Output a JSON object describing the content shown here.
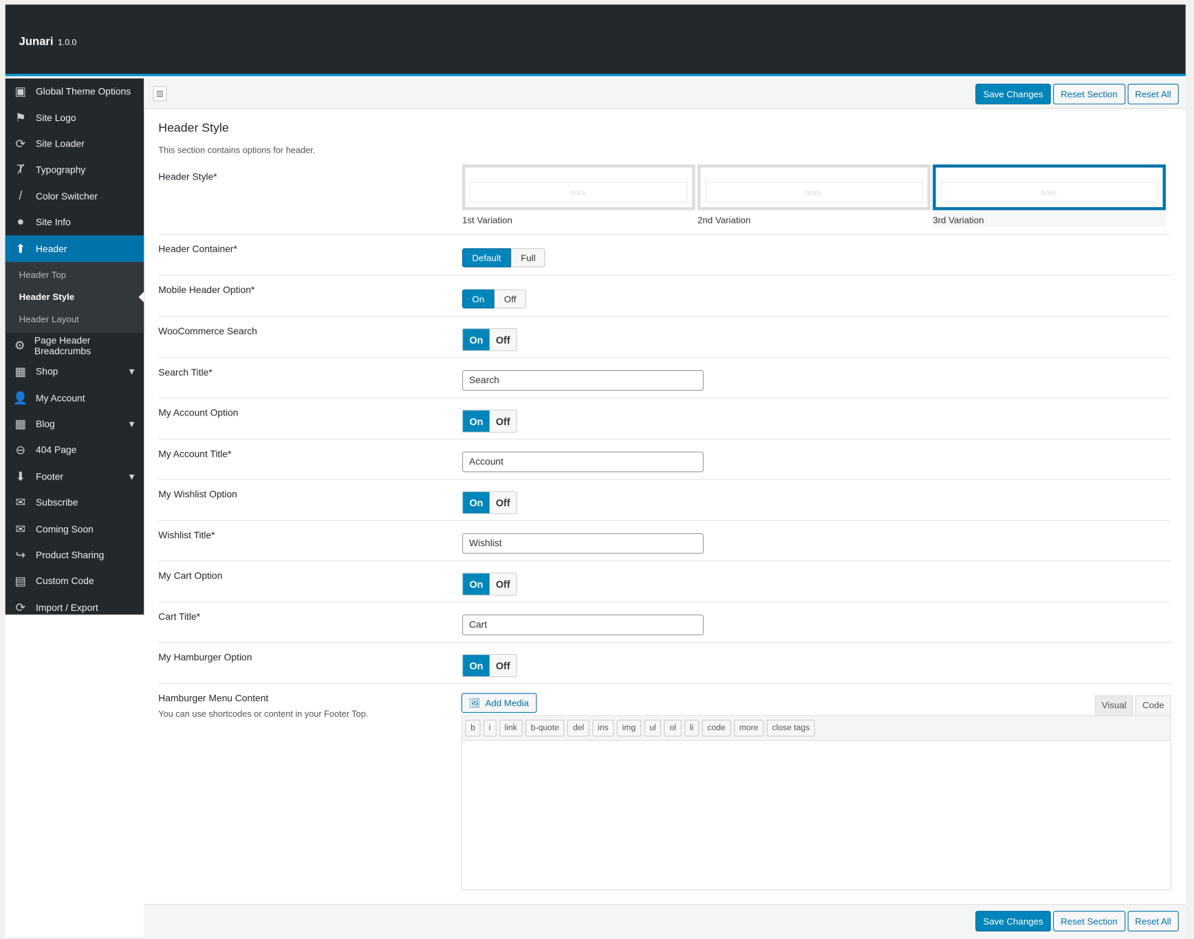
{
  "app": {
    "name": "Junari",
    "version": "1.0.0"
  },
  "sidebar": {
    "items": [
      {
        "label": "Global Theme Options",
        "icon": "layout-icon",
        "glyph": "▣"
      },
      {
        "label": "Site Logo",
        "icon": "flag-icon",
        "glyph": "⚑"
      },
      {
        "label": "Site Loader",
        "icon": "refresh-icon",
        "glyph": "⟳"
      },
      {
        "label": "Typography",
        "icon": "text-icon",
        "glyph": "Ⱦ"
      },
      {
        "label": "Color Switcher",
        "icon": "brush-icon",
        "glyph": "/"
      },
      {
        "label": "Site Info",
        "icon": "location-icon",
        "glyph": "●"
      },
      {
        "label": "Header",
        "icon": "arrow-up-icon",
        "glyph": "⬆"
      }
    ],
    "subitems": [
      "Header Top",
      "Header Style",
      "Header Layout"
    ],
    "items2": [
      {
        "label": "Page Header Breadcrumbs",
        "icon": "gear-icon",
        "glyph": "⚙"
      },
      {
        "label": "Shop",
        "icon": "gift-icon",
        "glyph": "▦"
      },
      {
        "label": "My Account",
        "icon": "user-icon",
        "glyph": "👤"
      },
      {
        "label": "Blog",
        "icon": "gift-icon",
        "glyph": "▦"
      },
      {
        "label": "404 Page",
        "icon": "minus-circle-icon",
        "glyph": "⊖"
      },
      {
        "label": "Footer",
        "icon": "arrow-down-icon",
        "glyph": "⬇"
      },
      {
        "label": "Subscribe",
        "icon": "envelope-icon",
        "glyph": "✉"
      },
      {
        "label": "Coming Soon",
        "icon": "envelope-icon",
        "glyph": "✉"
      },
      {
        "label": "Product Sharing",
        "icon": "share-icon",
        "glyph": "↪"
      },
      {
        "label": "Custom Code",
        "icon": "css-icon",
        "glyph": "▤"
      },
      {
        "label": "Import / Export",
        "icon": "refresh-icon",
        "glyph": "⟳"
      }
    ]
  },
  "buttons": {
    "save": "Save Changes",
    "reset_section": "Reset Section",
    "reset_all": "Reset All"
  },
  "section": {
    "title": "Header Style",
    "description": "This section contains options for header."
  },
  "fields": {
    "header_style": {
      "label": "Header Style*",
      "options": [
        "1st Variation",
        "2nd Variation",
        "3rd Variation"
      ],
      "selected": "3rd Variation",
      "mock_logo": "nora."
    },
    "header_container": {
      "label": "Header Container*",
      "options": [
        "Default",
        "Full"
      ],
      "selected": "Default"
    },
    "mobile_header": {
      "label": "Mobile Header Option*",
      "on": "On",
      "off": "Off",
      "value": "On"
    },
    "woo_search": {
      "label": "WooCommerce Search",
      "on": "On",
      "off": "Off",
      "value": "On"
    },
    "search_title": {
      "label": "Search Title*",
      "value": "Search"
    },
    "account_option": {
      "label": "My Account Option",
      "on": "On",
      "off": "Off",
      "value": "On"
    },
    "account_title": {
      "label": "My Account Title*",
      "value": "Account"
    },
    "wishlist_option": {
      "label": "My Wishlist Option",
      "on": "On",
      "off": "Off",
      "value": "On"
    },
    "wishlist_title": {
      "label": "Wishlist Title*",
      "value": "Wishlist"
    },
    "cart_option": {
      "label": "My Cart Option",
      "on": "On",
      "off": "Off",
      "value": "On"
    },
    "cart_title": {
      "label": "Cart Title*",
      "value": "Cart"
    },
    "hamburger_option": {
      "label": "My Hamburger Option",
      "on": "On",
      "off": "Off",
      "value": "On"
    },
    "hamburger_content": {
      "label": "Hamburger Menu Content",
      "note": "You can use shortcodes or content in your Footer Top.",
      "add_media": "Add Media",
      "tabs": [
        "Visual",
        "Code"
      ],
      "active_tab": "Code",
      "quicktags": [
        "b",
        "i",
        "link",
        "b-quote",
        "del",
        "ins",
        "img",
        "ul",
        "ol",
        "li",
        "code",
        "more",
        "close tags"
      ],
      "value": ""
    }
  }
}
